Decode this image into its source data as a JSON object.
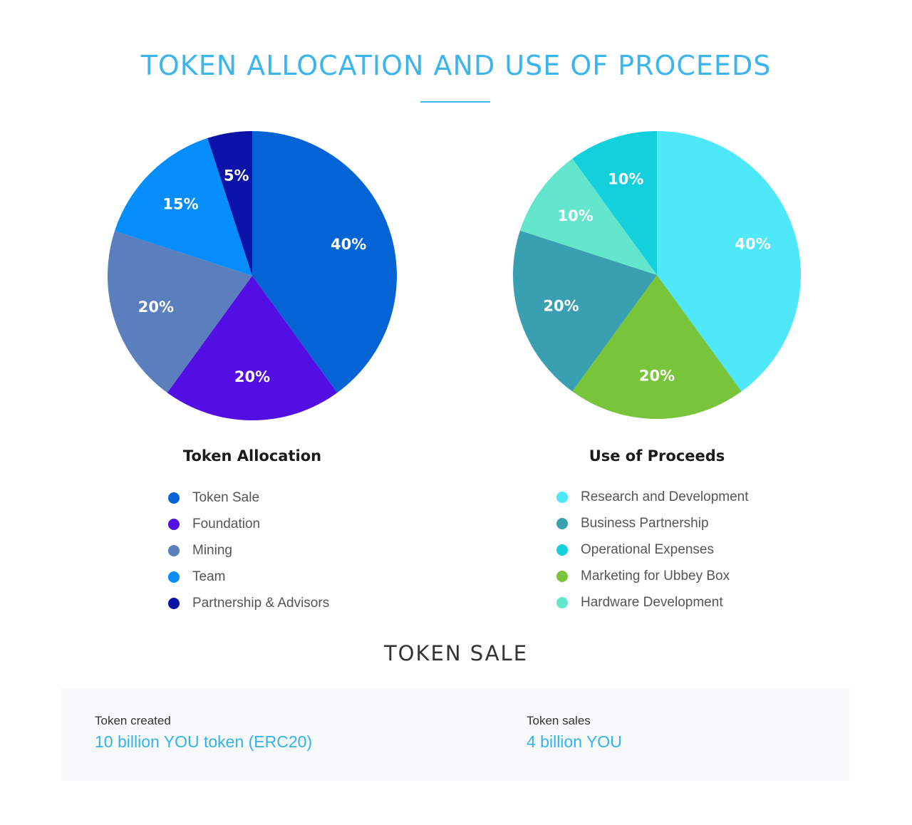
{
  "title": "TOKEN ALLOCATION AND USE OF PROCEEDS",
  "chart_data": [
    {
      "type": "pie",
      "title": "Token Allocation",
      "categories": [
        "Token Sale",
        "Foundation",
        "Mining",
        "Team",
        "Partnership & Advisors"
      ],
      "values": [
        40,
        20,
        20,
        15,
        5
      ],
      "labels": [
        "40%",
        "20%",
        "20%",
        "15%",
        "5%"
      ],
      "colors": [
        "#0464d6",
        "#520ee3",
        "#5b7fbc",
        "#048dfb",
        "#0a12a8"
      ]
    },
    {
      "type": "pie",
      "title": "Use of Proceeds",
      "categories": [
        "Research and Development",
        "Marketing for Ubbey Box",
        "Business Partnership",
        "Hardware Development",
        "Operational Expenses"
      ],
      "values": [
        40,
        20,
        20,
        10,
        10
      ],
      "labels": [
        "40%",
        "20%",
        "20%",
        "10%",
        "10%"
      ],
      "colors": [
        "#4ee8f8",
        "#78c43a",
        "#38a0b0",
        "#64e6cc",
        "#14d0dc"
      ]
    }
  ],
  "legends": {
    "allocation": [
      {
        "label": "Token Sale",
        "color": "#0464d6"
      },
      {
        "label": "Foundation",
        "color": "#520ee3"
      },
      {
        "label": "Mining",
        "color": "#5b7fbc"
      },
      {
        "label": "Team",
        "color": "#048dfb"
      },
      {
        "label": "Partnership & Advisors",
        "color": "#0a12a8"
      }
    ],
    "proceeds": [
      {
        "label": "Research and Development",
        "color": "#4ee8f8"
      },
      {
        "label": "Business Partnership",
        "color": "#38a0b0"
      },
      {
        "label": "Operational Expenses",
        "color": "#14d0dc"
      },
      {
        "label": "Marketing for Ubbey Box",
        "color": "#78c43a"
      },
      {
        "label": "Hardware Development",
        "color": "#64e6cc"
      }
    ]
  },
  "token_sale": {
    "title": "TOKEN SALE",
    "created_label": "Token created",
    "created_value": "10 billion YOU token (ERC20)",
    "sales_label": "Token sales",
    "sales_value": "4 billion YOU"
  }
}
